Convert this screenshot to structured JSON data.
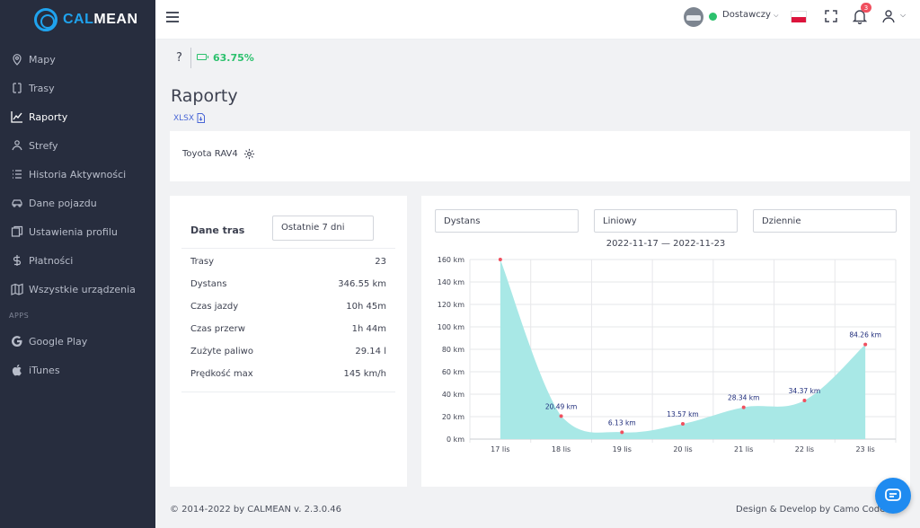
{
  "brand": {
    "logo_text_a": "CAL",
    "logo_text_b": "MEAN",
    "accent_color": "#1fa3ee"
  },
  "sidebar": {
    "items": [
      {
        "label": "Mapy",
        "icon": "map-pin-icon"
      },
      {
        "label": "Trasy",
        "icon": "route-icon"
      },
      {
        "label": "Raporty",
        "icon": "chart-line-icon",
        "active": true
      },
      {
        "label": "Strefy",
        "icon": "zones-icon"
      },
      {
        "label": "Historia Aktywności",
        "icon": "list-icon"
      },
      {
        "label": "Dane pojazdu",
        "icon": "car-icon"
      },
      {
        "label": "Ustawienia profilu",
        "icon": "profile-settings-icon"
      },
      {
        "label": "Płatności",
        "icon": "dollar-icon"
      },
      {
        "label": "Wszystkie urządzenia",
        "icon": "map-icon"
      }
    ],
    "apps_label": "APPS",
    "apps": [
      {
        "label": "Google Play",
        "icon": "google-icon"
      },
      {
        "label": "iTunes",
        "icon": "apple-icon"
      }
    ]
  },
  "topbar": {
    "user_label": "Dostawczy",
    "notification_count": "3",
    "status_color": "#2cc16d"
  },
  "page": {
    "help": "?",
    "battery": "63.75%",
    "title": "Raporty",
    "export_label": "XLSX"
  },
  "vehicle": {
    "name": "Toyota RAV4"
  },
  "stats": {
    "title": "Dane tras",
    "range": "Ostatnie 7 dni",
    "rows": [
      {
        "label": "Trasy",
        "value": "23"
      },
      {
        "label": "Dystans",
        "value": "346.55 km"
      },
      {
        "label": "Czas jazdy",
        "value": "10h 45m"
      },
      {
        "label": "Czas przerw",
        "value": "1h 44m"
      },
      {
        "label": "Zużyte paliwo",
        "value": "29.14 l"
      },
      {
        "label": "Prędkość max",
        "value": "145 km/h"
      }
    ]
  },
  "chart_controls": {
    "metric": "Dystans",
    "style": "Liniowy",
    "interval": "Dziennie",
    "date_range": "2022-11-17 — 2022-11-23"
  },
  "chart_data": {
    "type": "area",
    "categories": [
      "17 lis",
      "18 lis",
      "19 lis",
      "20 lis",
      "21 lis",
      "22 lis",
      "23 lis"
    ],
    "values": [
      160,
      20.49,
      6.13,
      13.57,
      28.34,
      34.37,
      84.26
    ],
    "data_labels": [
      "",
      "20.49 km",
      "6.13 km",
      "13.57 km",
      "28.34 km",
      "34.37 km",
      "84.26 km"
    ],
    "y_ticks": [
      "0 km",
      "20 km",
      "40 km",
      "60 km",
      "80 km",
      "100 km",
      "120 km",
      "140 km",
      "160 km"
    ],
    "ylim": [
      0,
      160
    ],
    "grid": true,
    "fill_color": "#a8e8e6",
    "point_color": "#f0505f"
  },
  "footer": {
    "left": "© 2014-2022 by CALMEAN v. 2.3.0.46",
    "right": "Design & Develop by Camo Code Studio"
  }
}
